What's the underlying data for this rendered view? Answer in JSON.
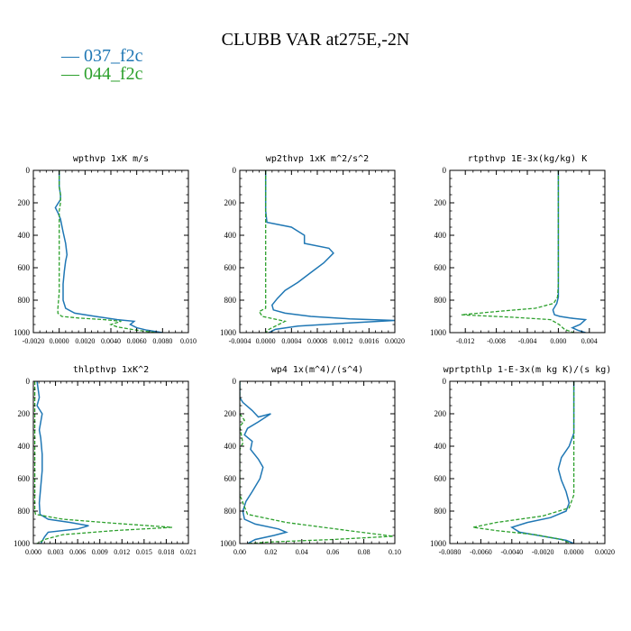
{
  "title": "CLUBB VAR at275E,-2N",
  "legend": [
    {
      "label": "— 037_f2c",
      "color": "#1f77b4"
    },
    {
      "label": "— 044_f2c",
      "color": "#2ca02c"
    }
  ],
  "chart_data": [
    {
      "type": "line",
      "title": "wpthvp   1xK m/s",
      "xlim": [
        -0.002,
        0.01
      ],
      "ylim": [
        1000,
        0
      ],
      "xticks": [
        -0.002,
        0.0,
        0.002,
        0.004,
        0.006,
        0.008,
        0.01
      ],
      "xtick_labels": [
        "-0.0020",
        "0.0000",
        "0.0020",
        "0.0040",
        "0.0060",
        "0.0080",
        "0.010"
      ],
      "yticks": [
        0,
        200,
        400,
        600,
        800,
        1000
      ],
      "series": [
        {
          "name": "037_f2c",
          "color": "#1f77b4",
          "dashed": false,
          "x": [
            0.0,
            0.0,
            0.0001,
            0.0001,
            -0.0003,
            -0.0001,
            0.0001,
            0.0003,
            0.0005,
            0.0006,
            0.0005,
            0.0004,
            0.0003,
            0.0003,
            0.0005,
            0.0012,
            0.0028,
            0.0045,
            0.0058,
            0.0055,
            0.006,
            0.0068,
            0.008
          ],
          "y": [
            0,
            100,
            150,
            180,
            230,
            260,
            300,
            380,
            450,
            520,
            560,
            620,
            700,
            800,
            850,
            880,
            900,
            920,
            930,
            950,
            970,
            985,
            1000
          ]
        },
        {
          "name": "044_f2c",
          "color": "#2ca02c",
          "dashed": true,
          "x": [
            0.0,
            0.0,
            0.0001,
            0.0001,
            0.0,
            0.0,
            0.0,
            0.0,
            0.0,
            0.0,
            -0.0001,
            -0.0001,
            0.0002,
            0.0015,
            0.0035,
            0.0048,
            0.004,
            0.0045,
            0.006,
            0.0075
          ],
          "y": [
            0,
            100,
            150,
            200,
            250,
            350,
            450,
            550,
            650,
            750,
            850,
            880,
            900,
            910,
            920,
            930,
            950,
            965,
            985,
            1000
          ]
        }
      ]
    },
    {
      "type": "line",
      "title": "wp2thvp   1xK m^2/s^2",
      "xlim": [
        -0.0004,
        0.002
      ],
      "ylim": [
        1000,
        0
      ],
      "xticks": [
        -0.0004,
        0.0,
        0.0004,
        0.0008,
        0.0012,
        0.0016,
        0.002
      ],
      "xtick_labels": [
        "-0.0004",
        "0.0000",
        "0.0004",
        "0.0008",
        "0.0012",
        "0.0016",
        "0.0020"
      ],
      "yticks": [
        0,
        200,
        400,
        600,
        800,
        1000
      ],
      "series": [
        {
          "name": "037_f2c",
          "color": "#1f77b4",
          "dashed": false,
          "x": [
            0.0,
            0.0,
            0.0,
            2e-05,
            0.0004,
            0.0006,
            0.0006,
            0.00098,
            0.00105,
            0.0009,
            0.0007,
            0.0005,
            0.0003,
            0.00018,
            0.0001,
            0.00012,
            0.0003,
            0.0007,
            0.0013,
            0.002,
            0.0013,
            0.0005,
            0.00015,
            5e-05
          ],
          "y": [
            0,
            100,
            250,
            320,
            350,
            400,
            450,
            480,
            510,
            570,
            630,
            690,
            740,
            790,
            830,
            860,
            880,
            900,
            915,
            925,
            940,
            960,
            980,
            1000
          ]
        },
        {
          "name": "044_f2c",
          "color": "#2ca02c",
          "dashed": true,
          "x": [
            0.0,
            0.0,
            0.0,
            0.0,
            0.0,
            0.0,
            0.0,
            -0.0001,
            -5e-05,
            0.0003,
            0.0002,
            5e-05,
            0.0
          ],
          "y": [
            0,
            200,
            400,
            600,
            700,
            800,
            850,
            870,
            900,
            930,
            950,
            980,
            1000
          ]
        }
      ]
    },
    {
      "type": "line",
      "title": "rtpthvp   1E-3x(kg/kg) K",
      "xlim": [
        -0.014,
        0.006
      ],
      "ylim": [
        1000,
        0
      ],
      "xticks": [
        -0.012,
        -0.008,
        -0.004,
        0.0,
        0.004
      ],
      "xtick_labels": [
        "-0.012",
        "-0.008",
        "-0.004",
        "0.000",
        "0.004"
      ],
      "yticks": [
        0,
        200,
        400,
        600,
        800,
        1000
      ],
      "series": [
        {
          "name": "037_f2c",
          "color": "#1f77b4",
          "dashed": false,
          "x": [
            0.0,
            0.0,
            0.0,
            0.0,
            0.0,
            0.0,
            -0.0002,
            -0.0007,
            -0.0005,
            0.0002,
            0.0015,
            0.0035,
            0.0028,
            0.0018,
            0.0025,
            0.0035
          ],
          "y": [
            0,
            200,
            400,
            600,
            700,
            780,
            820,
            860,
            890,
            900,
            910,
            920,
            950,
            970,
            985,
            1000
          ]
        },
        {
          "name": "044_f2c",
          "color": "#2ca02c",
          "dashed": true,
          "x": [
            0.0,
            0.0,
            0.0,
            0.0,
            0.0,
            -0.0001,
            -0.0006,
            -0.003,
            -0.008,
            -0.0125,
            -0.006,
            -0.001,
            0.0001,
            0.0008,
            0.002
          ],
          "y": [
            0,
            200,
            400,
            600,
            700,
            780,
            820,
            850,
            870,
            890,
            905,
            920,
            950,
            980,
            1000
          ]
        }
      ]
    },
    {
      "type": "line",
      "title": "thlpthvp   1xK^2",
      "xlim": [
        0.0,
        0.021
      ],
      "ylim": [
        1000,
        0
      ],
      "xticks": [
        0.0,
        0.003,
        0.006,
        0.009,
        0.012,
        0.015,
        0.018,
        0.021
      ],
      "xtick_labels": [
        "0.000",
        "0.003",
        "0.006",
        "0.009",
        "0.012",
        "0.015",
        "0.018",
        "0.021"
      ],
      "yticks": [
        0,
        200,
        400,
        600,
        800,
        1000
      ],
      "series": [
        {
          "name": "037_f2c",
          "color": "#1f77b4",
          "dashed": false,
          "x": [
            0.0005,
            0.0008,
            0.0005,
            0.0012,
            0.001,
            0.0008,
            0.001,
            0.0012,
            0.0012,
            0.001,
            0.0008,
            0.0009,
            0.002,
            0.005,
            0.0075,
            0.006,
            0.002,
            0.0015,
            0.001
          ],
          "y": [
            0,
            100,
            150,
            200,
            250,
            300,
            350,
            450,
            550,
            650,
            750,
            820,
            850,
            870,
            890,
            910,
            930,
            960,
            1000
          ]
        },
        {
          "name": "044_f2c",
          "color": "#2ca02c",
          "dashed": true,
          "x": [
            0.0002,
            0.0002,
            0.0002,
            0.0002,
            0.0002,
            0.0002,
            0.0003,
            0.004,
            0.011,
            0.0188,
            0.011,
            0.004,
            0.0015,
            0.0005
          ],
          "y": [
            0,
            200,
            400,
            600,
            700,
            800,
            820,
            850,
            875,
            900,
            920,
            945,
            975,
            1000
          ]
        }
      ]
    },
    {
      "type": "line",
      "title": "wp4   1x(m^4)/(s^4)",
      "xlim": [
        0.0,
        0.1
      ],
      "ylim": [
        1000,
        0
      ],
      "xticks": [
        0.0,
        0.02,
        0.04,
        0.06,
        0.08,
        0.1
      ],
      "xtick_labels": [
        "0.00",
        "0.02",
        "0.04",
        "0.06",
        "0.08",
        "0.10"
      ],
      "yticks": [
        0,
        200,
        400,
        600,
        800,
        1000
      ],
      "series": [
        {
          "name": "037_f2c",
          "color": "#1f77b4",
          "dashed": false,
          "x": [
            0.0,
            0.0,
            0.002,
            0.008,
            0.012,
            0.02,
            0.012,
            0.005,
            0.003,
            0.008,
            0.007,
            0.012,
            0.015,
            0.013,
            0.008,
            0.004,
            0.002,
            0.003,
            0.01,
            0.025,
            0.03,
            0.022,
            0.01,
            0.005
          ],
          "y": [
            0,
            100,
            130,
            180,
            220,
            200,
            250,
            290,
            330,
            370,
            420,
            480,
            530,
            600,
            680,
            740,
            800,
            850,
            880,
            910,
            930,
            950,
            975,
            1000
          ]
        },
        {
          "name": "044_f2c",
          "color": "#2ca02c",
          "dashed": true,
          "x": [
            0.0,
            0.0,
            0.0,
            0.0,
            0.003,
            0.0,
            0.002,
            0.0,
            0.0,
            0.0,
            0.0,
            0.005,
            0.03,
            0.07,
            0.099,
            0.06,
            0.02,
            0.005
          ],
          "y": [
            0,
            100,
            150,
            200,
            240,
            280,
            380,
            420,
            500,
            600,
            700,
            820,
            870,
            920,
            955,
            975,
            990,
            1000
          ]
        }
      ]
    },
    {
      "type": "line",
      "title": "wprtpthlp   1-E-3x(m kg K)/(s kg)",
      "xlim": [
        -0.008,
        0.002
      ],
      "ylim": [
        1000,
        0
      ],
      "xticks": [
        -0.008,
        -0.006,
        -0.004,
        -0.002,
        0.0,
        0.002
      ],
      "xtick_labels": [
        "-0.0080",
        "-0.0060",
        "-0.0040",
        "-0.0020",
        "0.0000",
        "0.0020"
      ],
      "yticks": [
        0,
        200,
        400,
        600,
        800,
        1000
      ],
      "series": [
        {
          "name": "037_f2c",
          "color": "#1f77b4",
          "dashed": false,
          "x": [
            0.0,
            0.0,
            0.0,
            -0.0003,
            -0.0008,
            -0.001,
            -0.0008,
            -0.0005,
            -0.0003,
            -0.0005,
            -0.0015,
            -0.003,
            -0.004,
            -0.0035,
            -0.002,
            -0.0005,
            0.0
          ],
          "y": [
            0,
            200,
            320,
            400,
            470,
            540,
            610,
            680,
            750,
            800,
            840,
            870,
            900,
            930,
            955,
            980,
            1000
          ]
        },
        {
          "name": "044_f2c",
          "color": "#2ca02c",
          "dashed": true,
          "x": [
            0.0,
            0.0,
            0.0,
            0.0,
            0.0,
            -0.0003,
            -0.002,
            -0.005,
            -0.0065,
            -0.005,
            -0.0025,
            -0.0008,
            -0.0002
          ],
          "y": [
            0,
            200,
            400,
            600,
            700,
            780,
            830,
            870,
            900,
            920,
            945,
            975,
            1000
          ]
        }
      ]
    }
  ]
}
